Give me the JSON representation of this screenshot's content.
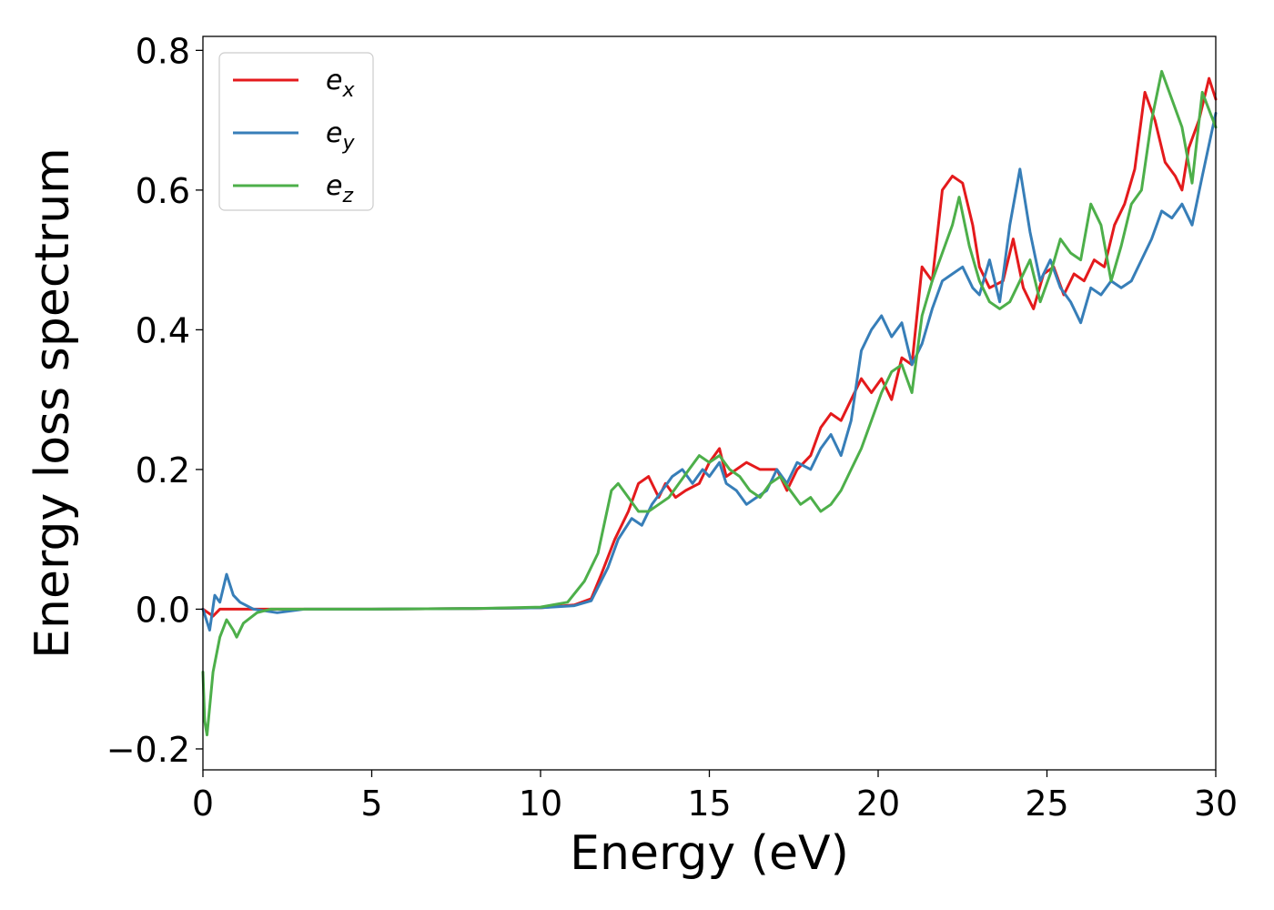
{
  "chart_data": {
    "type": "line",
    "xlabel": "Energy (eV)",
    "ylabel": "Energy loss spectrum",
    "xlim": [
      0,
      30
    ],
    "ylim": [
      -0.23,
      0.82
    ],
    "xticks": [
      0,
      5,
      10,
      15,
      20,
      25,
      30
    ],
    "xtick_labels": [
      "0",
      "5",
      "10",
      "15",
      "20",
      "25",
      "30"
    ],
    "yticks": [
      -0.2,
      0.0,
      0.2,
      0.4,
      0.6,
      0.8
    ],
    "ytick_labels": [
      "−0.2",
      "0.0",
      "0.2",
      "0.4",
      "0.6",
      "0.8"
    ],
    "grid": false,
    "legend_position": "top-left",
    "series": [
      {
        "name": "e_x",
        "label_base": "e",
        "label_sub": "x",
        "color": "#e41a1c",
        "x": [
          0,
          0.3,
          0.5,
          1,
          2,
          5,
          8,
          10,
          11,
          11.5,
          11.8,
          12.2,
          12.6,
          12.9,
          13.2,
          13.5,
          13.7,
          14,
          14.3,
          14.7,
          15,
          15.3,
          15.5,
          15.8,
          16.1,
          16.5,
          17,
          17.3,
          17.6,
          18,
          18.3,
          18.6,
          18.9,
          19.2,
          19.5,
          19.8,
          20.1,
          20.4,
          20.7,
          21,
          21.3,
          21.6,
          21.9,
          22.2,
          22.5,
          22.8,
          23,
          23.3,
          23.7,
          24,
          24.3,
          24.6,
          24.9,
          25.2,
          25.5,
          25.8,
          26.1,
          26.4,
          26.7,
          27,
          27.3,
          27.6,
          27.9,
          28.2,
          28.5,
          28.8,
          29,
          29.2,
          29.5,
          29.8,
          30
        ],
        "y": [
          0,
          -0.01,
          0.0,
          0.0,
          0.0,
          0.0,
          0.001,
          0.002,
          0.006,
          0.015,
          0.05,
          0.1,
          0.14,
          0.18,
          0.19,
          0.16,
          0.18,
          0.16,
          0.17,
          0.18,
          0.21,
          0.23,
          0.19,
          0.2,
          0.21,
          0.2,
          0.2,
          0.17,
          0.2,
          0.22,
          0.26,
          0.28,
          0.27,
          0.3,
          0.33,
          0.31,
          0.33,
          0.3,
          0.36,
          0.35,
          0.49,
          0.47,
          0.6,
          0.62,
          0.61,
          0.55,
          0.49,
          0.46,
          0.47,
          0.53,
          0.46,
          0.43,
          0.48,
          0.49,
          0.45,
          0.48,
          0.47,
          0.5,
          0.49,
          0.55,
          0.58,
          0.63,
          0.74,
          0.7,
          0.64,
          0.62,
          0.6,
          0.66,
          0.7,
          0.76,
          0.73
        ]
      },
      {
        "name": "e_y",
        "label_base": "e",
        "label_sub": "y",
        "color": "#377eb8",
        "x": [
          0,
          0.2,
          0.35,
          0.5,
          0.7,
          0.9,
          1.1,
          1.5,
          2.2,
          3,
          5,
          8,
          10,
          11,
          11.5,
          12,
          12.3,
          12.7,
          13,
          13.3,
          13.6,
          13.9,
          14.2,
          14.5,
          14.8,
          15,
          15.3,
          15.5,
          15.8,
          16.1,
          16.4,
          16.7,
          17,
          17.3,
          17.6,
          18,
          18.3,
          18.6,
          18.9,
          19.2,
          19.5,
          19.8,
          20.1,
          20.4,
          20.7,
          21,
          21.3,
          21.6,
          21.9,
          22.2,
          22.5,
          22.8,
          23,
          23.3,
          23.6,
          23.9,
          24.2,
          24.5,
          24.8,
          25.1,
          25.4,
          25.7,
          26,
          26.3,
          26.6,
          26.9,
          27.2,
          27.5,
          27.8,
          28.1,
          28.4,
          28.7,
          29,
          29.3,
          29.6,
          30
        ],
        "y": [
          0,
          -0.03,
          0.02,
          0.01,
          0.05,
          0.02,
          0.01,
          0.0,
          -0.005,
          0.0,
          0.0,
          0.001,
          0.002,
          0.005,
          0.012,
          0.06,
          0.1,
          0.13,
          0.12,
          0.15,
          0.17,
          0.19,
          0.2,
          0.18,
          0.2,
          0.19,
          0.21,
          0.18,
          0.17,
          0.15,
          0.16,
          0.17,
          0.2,
          0.18,
          0.21,
          0.2,
          0.23,
          0.25,
          0.22,
          0.27,
          0.37,
          0.4,
          0.42,
          0.39,
          0.41,
          0.35,
          0.38,
          0.43,
          0.47,
          0.48,
          0.49,
          0.46,
          0.45,
          0.5,
          0.44,
          0.55,
          0.63,
          0.54,
          0.47,
          0.5,
          0.46,
          0.44,
          0.41,
          0.46,
          0.45,
          0.47,
          0.46,
          0.47,
          0.5,
          0.53,
          0.57,
          0.56,
          0.58,
          0.55,
          0.62,
          0.71
        ]
      },
      {
        "name": "e_z",
        "label_base": "e",
        "label_sub": "z",
        "color": "#4daf4a",
        "x": [
          0,
          0.05,
          0.12,
          0.3,
          0.5,
          0.7,
          0.9,
          1.0,
          1.2,
          1.6,
          2.0,
          3,
          5,
          8,
          10,
          10.8,
          11.3,
          11.7,
          12.1,
          12.3,
          12.6,
          12.9,
          13.2,
          13.5,
          13.8,
          14.1,
          14.4,
          14.7,
          15,
          15.3,
          15.6,
          15.9,
          16.2,
          16.5,
          16.8,
          17.1,
          17.4,
          17.7,
          18,
          18.3,
          18.6,
          18.9,
          19.2,
          19.5,
          19.8,
          20.1,
          20.4,
          20.7,
          21,
          21.3,
          21.6,
          21.9,
          22.2,
          22.4,
          22.7,
          23,
          23.3,
          23.6,
          23.9,
          24.2,
          24.5,
          24.8,
          25.1,
          25.4,
          25.7,
          26,
          26.3,
          26.6,
          26.9,
          27.2,
          27.5,
          27.8,
          28.1,
          28.4,
          28.7,
          29,
          29.3,
          29.6,
          30
        ],
        "y": [
          -0.09,
          -0.16,
          -0.18,
          -0.09,
          -0.04,
          -0.015,
          -0.03,
          -0.04,
          -0.02,
          -0.005,
          0.0,
          0.0,
          0.0,
          0.001,
          0.003,
          0.01,
          0.04,
          0.08,
          0.17,
          0.18,
          0.16,
          0.14,
          0.14,
          0.15,
          0.16,
          0.18,
          0.2,
          0.22,
          0.21,
          0.22,
          0.2,
          0.19,
          0.17,
          0.16,
          0.18,
          0.19,
          0.17,
          0.15,
          0.16,
          0.14,
          0.15,
          0.17,
          0.2,
          0.23,
          0.27,
          0.31,
          0.34,
          0.35,
          0.31,
          0.42,
          0.47,
          0.51,
          0.55,
          0.59,
          0.52,
          0.47,
          0.44,
          0.43,
          0.44,
          0.47,
          0.5,
          0.44,
          0.48,
          0.53,
          0.51,
          0.5,
          0.58,
          0.55,
          0.47,
          0.52,
          0.58,
          0.6,
          0.7,
          0.77,
          0.73,
          0.69,
          0.61,
          0.74,
          0.69
        ]
      }
    ]
  }
}
